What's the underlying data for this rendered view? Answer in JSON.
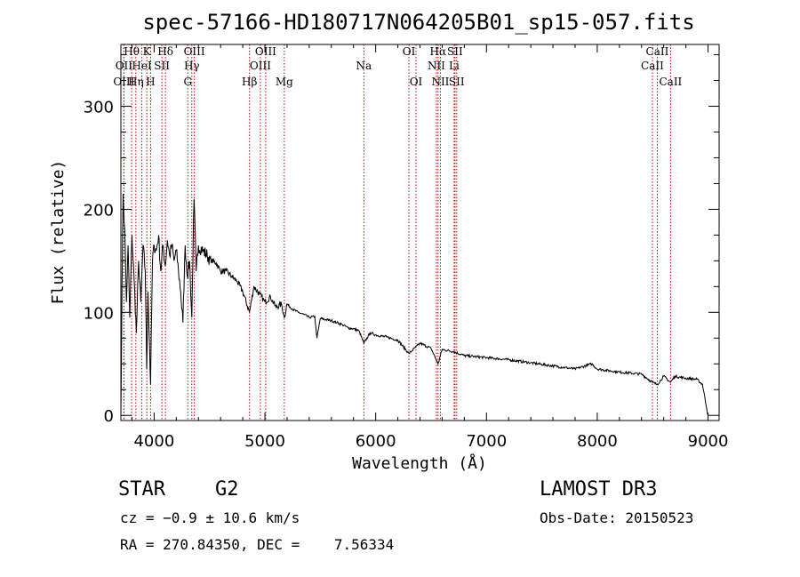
{
  "chart_data": {
    "type": "line",
    "title": "spec-57166-HD180717N064205B01_sp15-057.fits",
    "xlabel": "Wavelength (Å)",
    "ylabel": "Flux (relative)",
    "xlim": [
      3700,
      9100
    ],
    "ylim": [
      -5,
      360
    ],
    "xticks": [
      4000,
      5000,
      6000,
      7000,
      8000,
      9000
    ],
    "xtick_labels": [
      "4000",
      "5000",
      "6000",
      "7000",
      "8000",
      "9000"
    ],
    "yticks": [
      0,
      100,
      200,
      300
    ],
    "ytick_labels": [
      "0",
      "100",
      "200",
      "300"
    ],
    "grid": false,
    "series": [
      {
        "name": "spectrum",
        "x": [
          3700,
          3710,
          3720,
          3735,
          3750,
          3765,
          3780,
          3800,
          3820,
          3840,
          3860,
          3880,
          3900,
          3920,
          3933,
          3945,
          3968,
          3985,
          4000,
          4020,
          4040,
          4060,
          4080,
          4100,
          4120,
          4140,
          4160,
          4180,
          4200,
          4220,
          4240,
          4260,
          4280,
          4300,
          4320,
          4340,
          4360,
          4380,
          4400,
          4440,
          4480,
          4520,
          4560,
          4600,
          4650,
          4700,
          4750,
          4800,
          4861,
          4900,
          4950,
          5000,
          5050,
          5100,
          5150,
          5175,
          5200,
          5250,
          5300,
          5350,
          5400,
          5450,
          5470,
          5500,
          5550,
          5600,
          5650,
          5700,
          5750,
          5800,
          5850,
          5893,
          5950,
          6000,
          6100,
          6200,
          6300,
          6400,
          6500,
          6563,
          6600,
          6700,
          6800,
          6900,
          7000,
          7200,
          7400,
          7600,
          7800,
          7950,
          8000,
          8200,
          8400,
          8498,
          8542,
          8600,
          8662,
          8700,
          8800,
          8900,
          8950,
          9000
        ],
        "y": [
          0,
          120,
          215,
          180,
          110,
          165,
          95,
          175,
          130,
          80,
          150,
          110,
          165,
          140,
          45,
          120,
          30,
          150,
          165,
          160,
          175,
          140,
          165,
          145,
          170,
          155,
          165,
          150,
          160,
          140,
          120,
          90,
          165,
          135,
          150,
          95,
          210,
          140,
          165,
          160,
          155,
          150,
          148,
          140,
          140,
          135,
          130,
          120,
          100,
          125,
          118,
          110,
          115,
          105,
          108,
          95,
          108,
          103,
          100,
          98,
          95,
          96,
          75,
          94,
          93,
          92,
          90,
          88,
          85,
          84,
          82,
          70,
          80,
          78,
          76,
          73,
          60,
          70,
          65,
          50,
          64,
          62,
          58,
          57,
          56,
          54,
          51,
          48,
          45,
          50,
          45,
          42,
          40,
          32,
          30,
          38,
          32,
          38,
          36,
          35,
          30,
          0
        ]
      }
    ],
    "line_markers": [
      {
        "label": "Hθ",
        "wavelength": 3797,
        "row": 1
      },
      {
        "label": "OII",
        "wavelength": 3727,
        "row": 2
      },
      {
        "label": "OIII",
        "wavelength": 3727,
        "row": 3
      },
      {
        "label": "K",
        "wavelength": 3934,
        "row": 1
      },
      {
        "label": "HeI",
        "wavelength": 3889,
        "row": 2
      },
      {
        "label": "Hη",
        "wavelength": 3835,
        "row": 3
      },
      {
        "label": "SII",
        "wavelength": 4070,
        "row": 2
      },
      {
        "label": "H",
        "wavelength": 3968,
        "row": 3
      },
      {
        "label": "Hδ",
        "wavelength": 4102,
        "row": 1
      },
      {
        "label": "OIII",
        "wavelength": 4363,
        "row": 1
      },
      {
        "label": "Hγ",
        "wavelength": 4340,
        "row": 2
      },
      {
        "label": "G",
        "wavelength": 4304,
        "row": 3
      },
      {
        "label": "OIII",
        "wavelength": 5007,
        "row": 1
      },
      {
        "label": "OIII",
        "wavelength": 4959,
        "row": 2
      },
      {
        "label": "Hβ",
        "wavelength": 4861,
        "row": 3
      },
      {
        "label": "Mg",
        "wavelength": 5175,
        "row": 3
      },
      {
        "label": "Na",
        "wavelength": 5893,
        "row": 2
      },
      {
        "label": "OI",
        "wavelength": 6300,
        "row": 1
      },
      {
        "label": "OI",
        "wavelength": 6364,
        "row": 3
      },
      {
        "label": "Hα",
        "wavelength": 6563,
        "row": 1
      },
      {
        "label": "SII",
        "wavelength": 6716,
        "row": 1
      },
      {
        "label": "NII",
        "wavelength": 6548,
        "row": 2
      },
      {
        "label": "Li",
        "wavelength": 6708,
        "row": 2
      },
      {
        "label": "NII",
        "wavelength": 6584,
        "row": 3
      },
      {
        "label": "SII",
        "wavelength": 6731,
        "row": 3
      },
      {
        "label": "CaII",
        "wavelength": 8542,
        "row": 1
      },
      {
        "label": "CaII",
        "wavelength": 8498,
        "row": 2
      },
      {
        "label": "CaII",
        "wavelength": 8662,
        "row": 3
      }
    ]
  },
  "info": {
    "object_class": "STAR",
    "subclass": "G2",
    "survey": "LAMOST DR3",
    "redshift": "cz = −0.9 ± 10.6 km/s",
    "obs_date": "Obs-Date: 20150523",
    "coords": "RA = 270.84350, DEC =    7.56334"
  },
  "colors": {
    "spectrum": "#000000",
    "marker_line": "#cc0000",
    "axis": "#000000"
  }
}
